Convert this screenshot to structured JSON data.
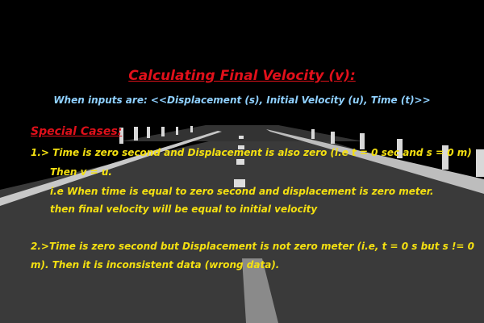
{
  "colors": {
    "background": "#000000",
    "road": "#3a3a3a",
    "title": "#e0101a",
    "subtitle": "#8fd0ff",
    "body_text": "#f4e011"
  },
  "slide": {
    "title": "Calculating Final Velocity (v):",
    "subtitle": "When inputs are: <<Displacement (s), Initial Velocity (u), Time (t)>>",
    "special_cases_heading": "Special Cases:",
    "case1": {
      "line1": "1.> Time is zero second and Displacement is also zero  (i.e t = 0 sec and s = 0 m)",
      "line2": "Then v = u.",
      "line3": "i.e When time is equal to zero second and displacement is zero meter.",
      "line4": "then final velocity will be equal to initial velocity"
    },
    "case2": {
      "line1": "2.>Time is zero second but Displacement is not zero meter (i.e, t = 0 s but s != 0",
      "line2": "m). Then it is inconsistent data (wrong data)."
    }
  }
}
